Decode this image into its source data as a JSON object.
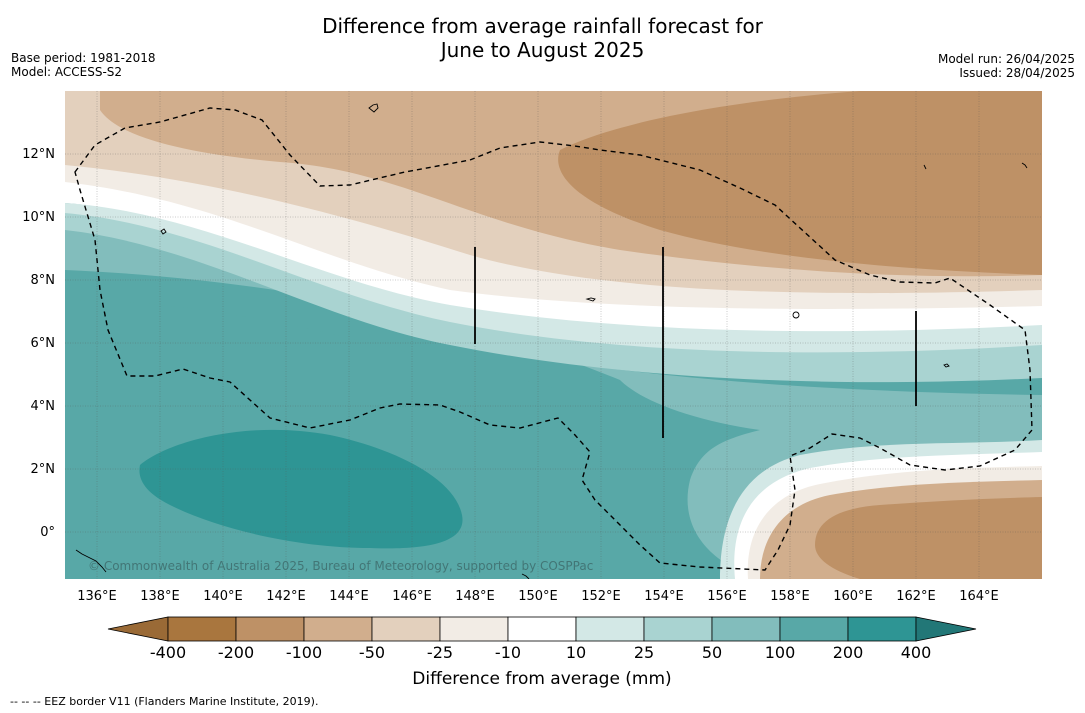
{
  "title_line1": "Difference from average rainfall forecast for",
  "title_line2": "June to August 2025",
  "meta_left": {
    "base_period": "Base period: 1981-2018",
    "model": "Model: ACCESS-S2"
  },
  "meta_right": {
    "model_run": "Model run: 26/04/2025",
    "issued": "Issued: 28/04/2025"
  },
  "copyright": "© Commonwealth of Australia 2025, Bureau of Meteorology, supported by COSPPac",
  "map": {
    "lon_ticks": [
      "136°E",
      "138°E",
      "140°E",
      "142°E",
      "144°E",
      "146°E",
      "148°E",
      "150°E",
      "152°E",
      "154°E",
      "156°E",
      "158°E",
      "160°E",
      "162°E",
      "164°E"
    ],
    "lat_ticks": [
      "12°N",
      "10°N",
      "8°N",
      "6°N",
      "4°N",
      "2°N",
      "0°"
    ]
  },
  "colorbar": {
    "tick_labels": [
      "-400",
      "-200",
      "-100",
      "-50",
      "-25",
      "-10",
      "10",
      "25",
      "50",
      "100",
      "200",
      "400"
    ],
    "colors": [
      "#9a6a36",
      "#a9763e",
      "#be9166",
      "#d1ae8d",
      "#e3d0bd",
      "#f2ece5",
      "#ffffff",
      "#d3e8e6",
      "#a9d3d1",
      "#82bdbc",
      "#58a8a7",
      "#2e9594",
      "#227777"
    ],
    "title": "Difference from average (mm)"
  },
  "footnote": "--  --  -- EEZ border V11 (Flanders Marine Institute, 2019)."
}
